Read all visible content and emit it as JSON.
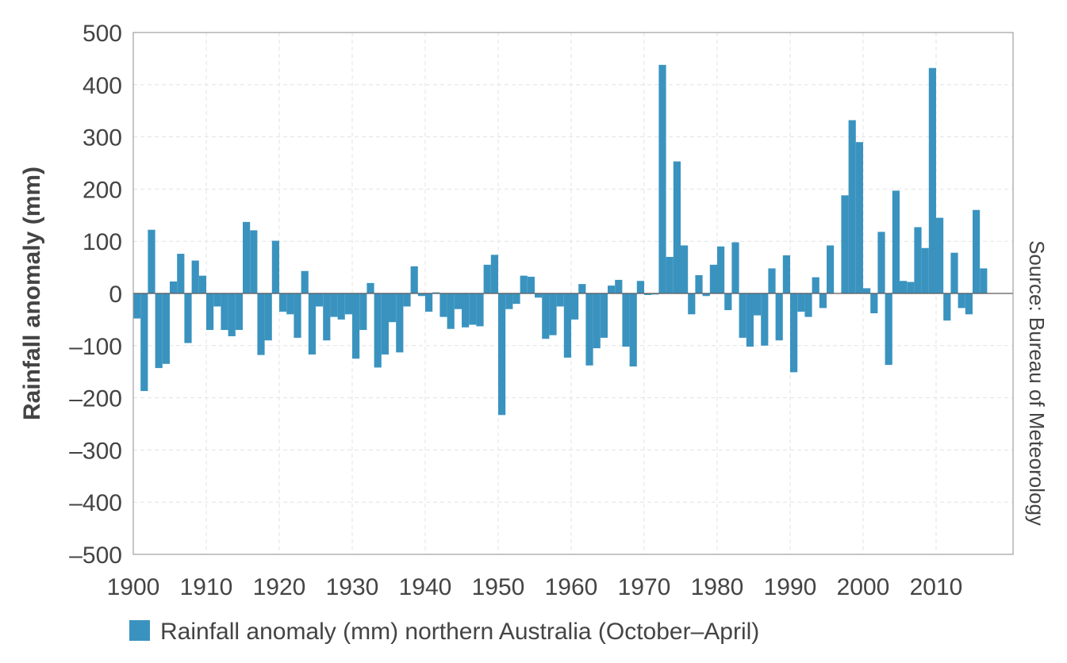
{
  "chart_data": {
    "type": "bar",
    "ylabel": "Rainfall anomaly (mm)",
    "xlabel": "",
    "ylim": [
      -500,
      500
    ],
    "yticks": [
      "500",
      "400",
      "300",
      "200",
      "100",
      "0",
      "–100",
      "–200",
      "–300",
      "–400",
      "–500"
    ],
    "ytick_values": [
      500,
      400,
      300,
      200,
      100,
      0,
      -100,
      -200,
      -300,
      -400,
      -500
    ],
    "xlim": [
      1900,
      2020
    ],
    "xticks": [
      1900,
      1910,
      1920,
      1930,
      1940,
      1950,
      1960,
      1970,
      1980,
      1990,
      2000,
      2010
    ],
    "grid": true,
    "legend_position": "bottom",
    "source_note": "Source: Bureau of Meteorology",
    "bar_color": "#3a93bf",
    "series": [
      {
        "name": "Rainfall anomaly (mm) northern Australia (October–April)",
        "start_year": 1900,
        "values": [
          -48,
          -187,
          122,
          -143,
          -135,
          23,
          76,
          -95,
          63,
          34,
          -70,
          -25,
          -70,
          -82,
          -70,
          137,
          121,
          -118,
          -90,
          101,
          -35,
          -40,
          -85,
          43,
          -117,
          -25,
          -90,
          -45,
          -50,
          -40,
          -125,
          -70,
          20,
          -142,
          -117,
          -55,
          -113,
          -25,
          52,
          -5,
          -35,
          2,
          -45,
          -68,
          -30,
          -65,
          -60,
          -63,
          55,
          74,
          -233,
          -30,
          -20,
          34,
          32,
          -8,
          -87,
          -80,
          -25,
          -123,
          -50,
          18,
          -138,
          -105,
          -85,
          15,
          26,
          -102,
          -140,
          24,
          -3,
          -2,
          438,
          70,
          253,
          92,
          -40,
          35,
          -5,
          55,
          90,
          -32,
          98,
          -85,
          -102,
          -42,
          -100,
          48,
          -90,
          73,
          -151,
          -35,
          -45,
          31,
          -28,
          92,
          0,
          188,
          332,
          290,
          10,
          -38,
          118,
          -137,
          197,
          24,
          22,
          127,
          87,
          432,
          145,
          -52,
          78,
          -28,
          -40,
          160,
          48
        ]
      }
    ]
  }
}
